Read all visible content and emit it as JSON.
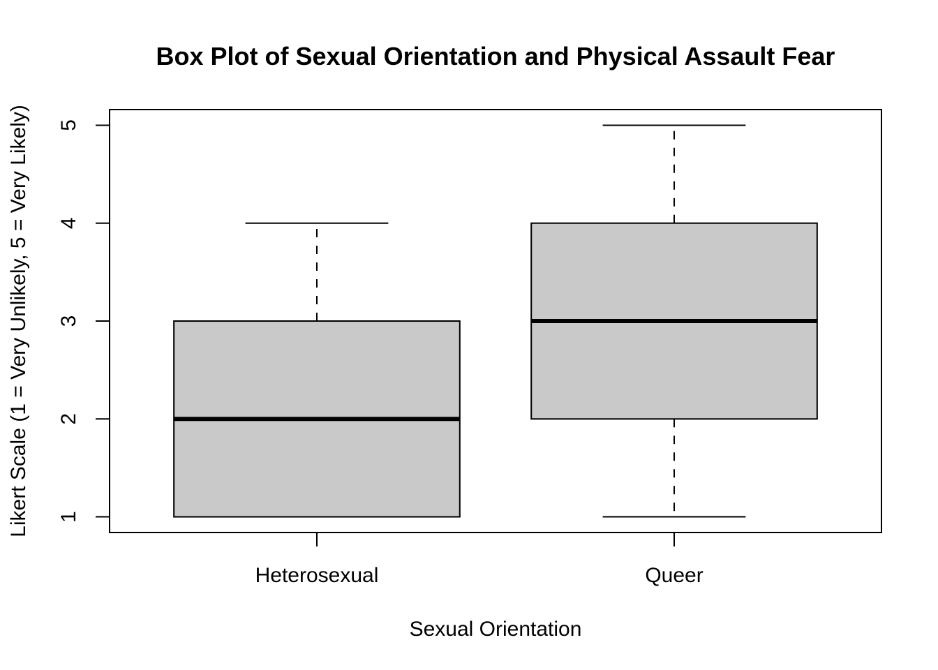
{
  "chart_data": {
    "type": "boxplot",
    "title": "Box Plot of Sexual Orientation and Physical Assault Fear",
    "xlabel": "Sexual Orientation",
    "ylabel": "Likert Scale (1 = Very Unlikely, 5 = Very Likely)",
    "categories": [
      "Heterosexual",
      "Queer"
    ],
    "ylim": [
      0.84,
      5.16
    ],
    "y_ticks": [
      1,
      2,
      3,
      4,
      5
    ],
    "boxes": [
      {
        "category": "Heterosexual",
        "min": 1,
        "q1": 1,
        "median": 2,
        "q3": 3,
        "max": 4
      },
      {
        "category": "Queer",
        "min": 1,
        "q1": 2,
        "median": 3,
        "q3": 4,
        "max": 5
      }
    ],
    "box_fill": "#c9c9c9",
    "line_color": "#000000",
    "grid": false,
    "legend": "none"
  }
}
